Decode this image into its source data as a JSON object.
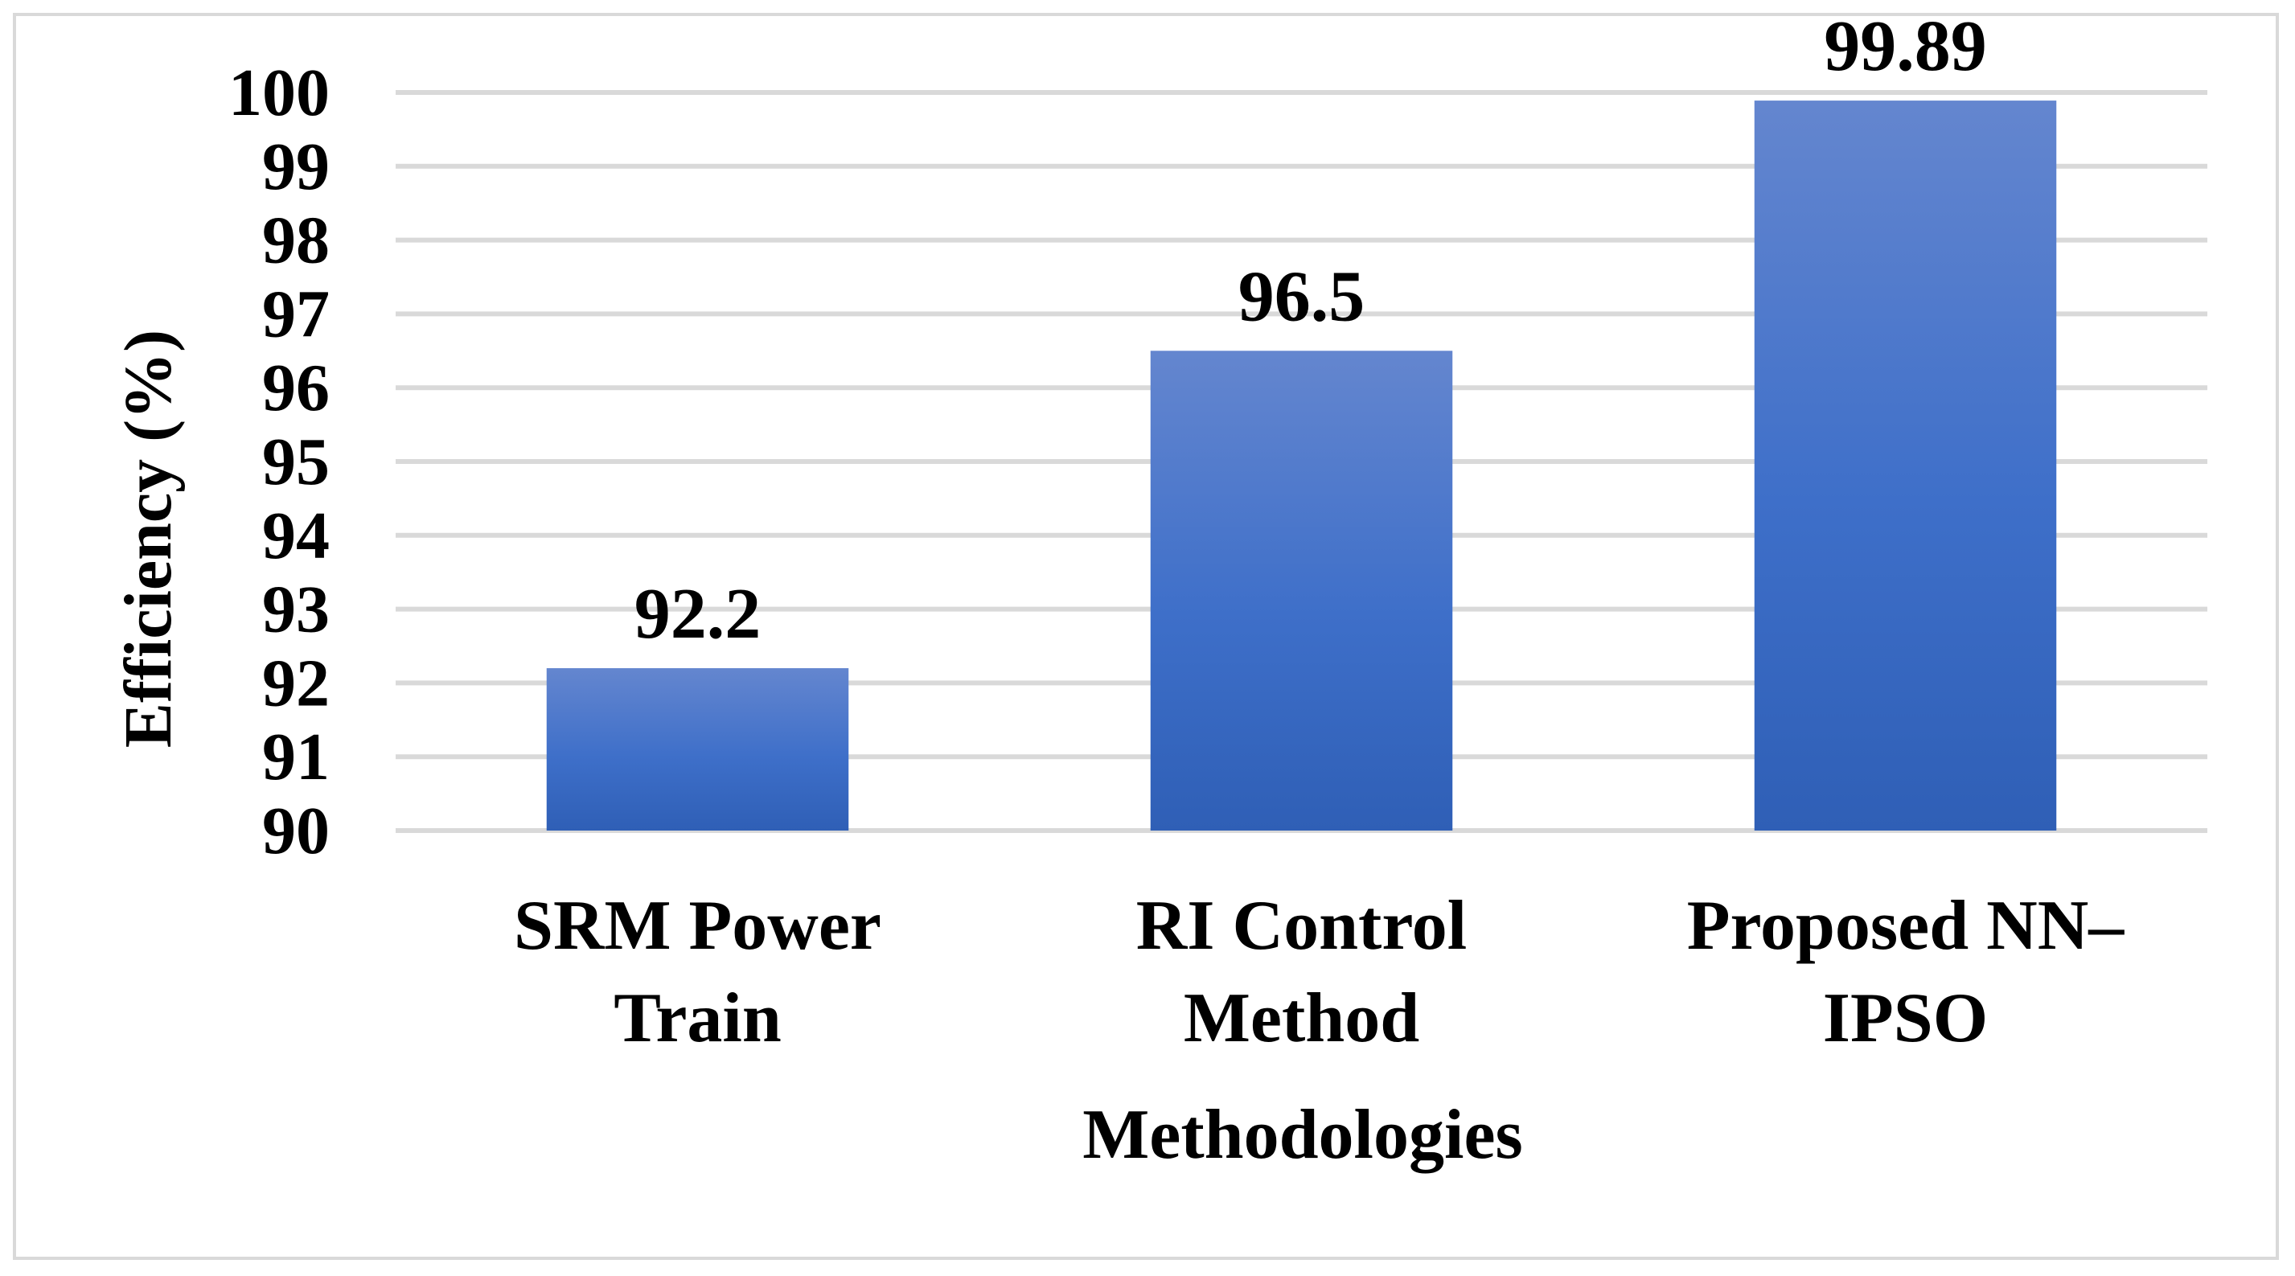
{
  "chart_data": {
    "type": "bar",
    "title": "",
    "xlabel": "Methodologies",
    "ylabel": "Efficiency (%)",
    "categories": [
      [
        "SRM Power",
        "Train"
      ],
      [
        "RI Control",
        "Method"
      ],
      [
        "Proposed NN–",
        "IPSO"
      ]
    ],
    "values": [
      92.2,
      96.5,
      99.89
    ],
    "value_labels": [
      "92.2",
      "96.5",
      "99.89"
    ],
    "ylim": [
      90,
      100
    ],
    "yticks": [
      90,
      91,
      92,
      93,
      94,
      95,
      96,
      97,
      98,
      99,
      100
    ],
    "grid": true,
    "legend": "none",
    "colors": {
      "bar_top": "#6486cf",
      "bar_mid": "#3e6fc9",
      "bar_bottom": "#2f5fb6",
      "grid": "#d9d9d9",
      "frame": "#d9d9d9",
      "text": "#000000"
    }
  }
}
